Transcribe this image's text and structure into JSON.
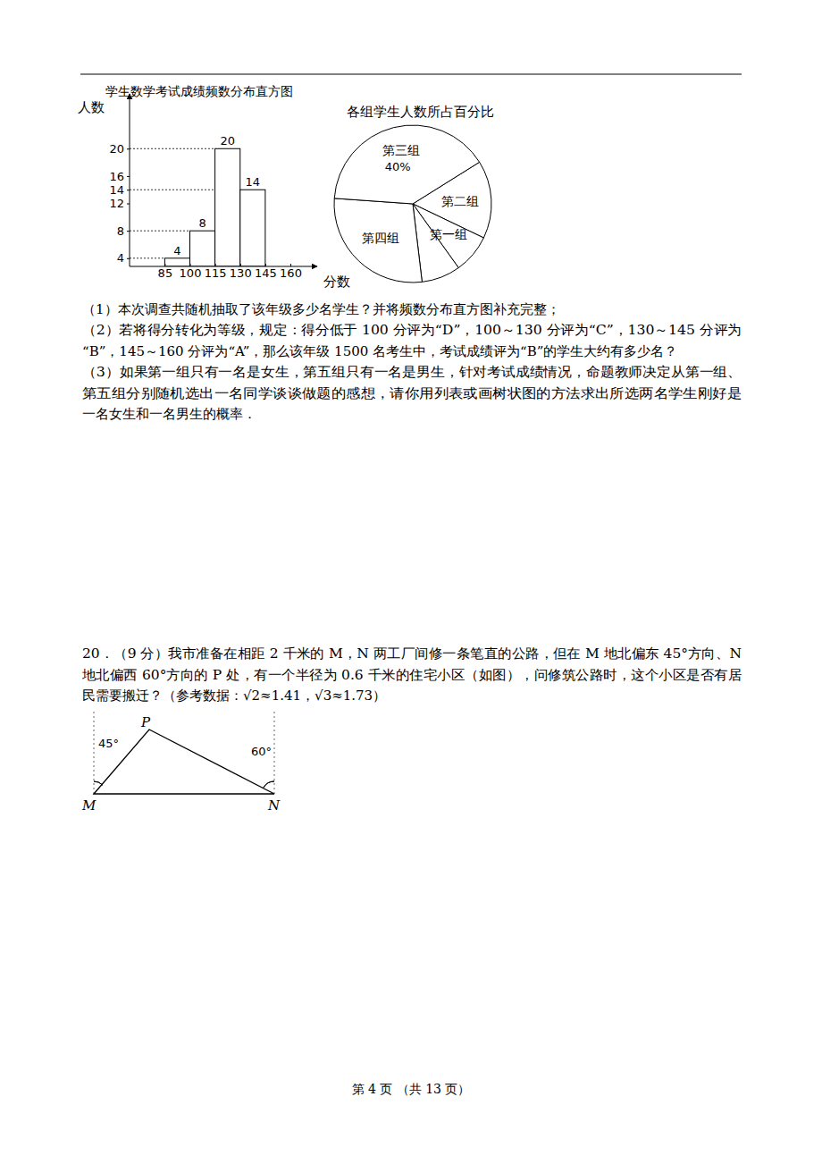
{
  "chart_data": [
    {
      "type": "histogram",
      "title": "学生数学考试成绩频数分布直方图",
      "y_label": "人数",
      "x_label": "分数",
      "bins": [
        85,
        100,
        115,
        130,
        145
      ],
      "values": [
        4,
        8,
        20,
        14
      ],
      "color": "#ffffff",
      "xlim": [
        64,
        176
      ],
      "xticks": [
        85,
        100,
        115,
        130,
        145,
        160
      ],
      "ylim": [
        2.8,
        28
      ],
      "yticks": [
        4,
        8,
        12,
        14,
        16,
        20
      ],
      "data_labels": true
    },
    {
      "type": "pie",
      "title": "各组学生人数所占百分比",
      "categories": [
        "第二组",
        "第一组",
        null,
        "第四组",
        "第三组"
      ],
      "values": [
        16,
        8,
        8,
        28,
        40
      ],
      "value_labels": [
        null,
        null,
        null,
        null,
        "40%"
      ],
      "color": "#ffffff"
    }
  ],
  "questions": [
    {
      "lines": [
        "（1）本次调查共随机抽取了该年级多少名学生？并将频数分布直方图补充完整；"
      ]
    },
    {
      "lines": [
        "（2）若将得分转化为等级，规定：得分低于 100 分评为“D”，100～130 分评为“C”，130～145 分评为",
        "“B”，145～160 分评为“A”，那么该年级 1500 名考生中，考试成绩评为“B”的学生大约有多少名？"
      ]
    },
    {
      "lines": [
        "（3）如果第一组只有一名是女生，第五组只有一名是男生，针对考试成绩情况，命题教师决定从第一组、",
        "第五组分别随机选出一名同学谈谈做题的感想，请你用列表或画树状图的方法求出所选两名学生刚好是",
        "一名女生和一名男生的概率．"
      ]
    },
    {
      "lines": [
        "20．（9 分）我市准备在相距 2 千米的 M，N 两工厂间修一条笔直的公路，但在 M 地北偏东 45°方向、N",
        "地北偏西 60°方向的 P 处，有一个半径为 0.6 千米的住宅小区（如图），问修筑公路时，这个小区是否有居",
        "民需要搬迁？（参考数据：√2≈1.41，√3≈1.73）"
      ]
    }
  ],
  "diagram": {
    "points": [
      "M",
      "N",
      "P"
    ],
    "angles": [
      "45°",
      "60°"
    ]
  },
  "footer": "第 4 页 （共 13 页）"
}
